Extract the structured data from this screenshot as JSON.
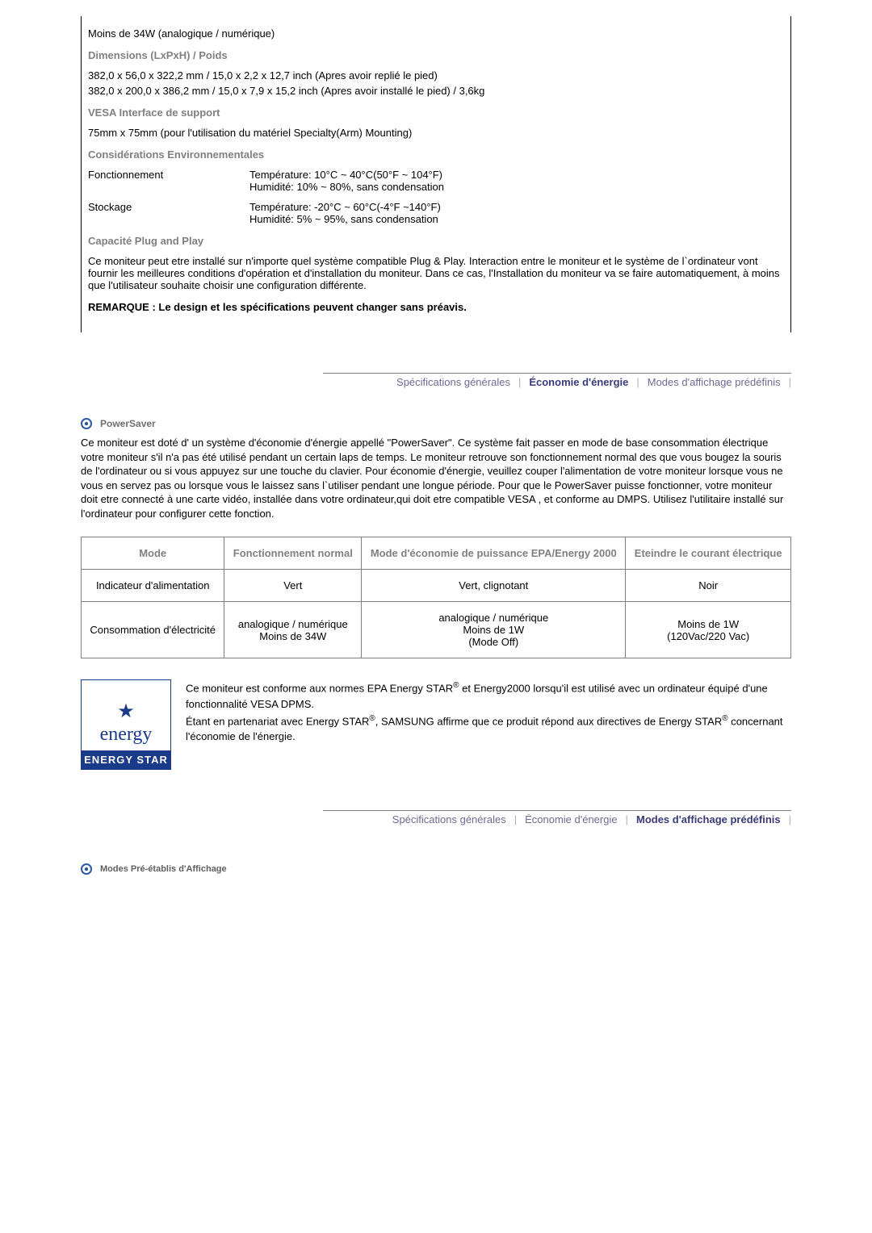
{
  "specs": {
    "power_consumption": "Moins de 34W (analogique / numérique)",
    "dimensions_heading": "Dimensions (LxPxH) / Poids",
    "dimensions_line1": "382,0 x 56,0 x 322,2 mm / 15,0 x 2,2 x 12,7 inch (Apres avoir replié le pied)",
    "dimensions_line2": "382,0 x 200,0 x 386,2 mm / 15,0 x 7,9 x 15,2 inch (Apres avoir installé le pied) / 3,6kg",
    "vesa_heading": "VESA Interface de support",
    "vesa_text": "75mm x 75mm (pour l'utilisation du matériel Specialty(Arm) Mounting)",
    "env_heading": "Considérations Environnementales",
    "operation_label": "Fonctionnement",
    "operation_temp": "Température: 10°C ~ 40°C(50°F ~ 104°F)",
    "operation_humidity": "Humidité: 10% ~ 80%, sans condensation",
    "storage_label": "Stockage",
    "storage_temp": "Température: -20°C ~ 60°C(-4°F ~140°F)",
    "storage_humidity": "Humidité: 5% ~ 95%, sans condensation",
    "pnp_heading": "Capacité Plug and Play",
    "pnp_text": "Ce moniteur peut etre installé sur n'importe quel système compatible Plug & Play. Interaction entre le moniteur et le système de l`ordinateur vont fournir les meilleures conditions d'opération et d'installation du moniteur. Dans ce cas, l'Installation du moniteur va se faire automatiquement, à moins que l'utilisateur souhaite choisir une configuration différente.",
    "remark": "REMARQUE : Le design et les spécifications peuvent changer sans préavis."
  },
  "tabs": {
    "general": "Spécifications générales",
    "energy": "Économie d'énergie",
    "preset": "Modes d'affichage prédéfinis"
  },
  "powersaver": {
    "title": "PowerSaver",
    "paragraph": "Ce moniteur est doté d' un système d'économie d'énergie appellé \"PowerSaver\". Ce système fait passer en mode de base consommation électrique votre moniteur s'il n'a pas été utilisé pendant un certain laps de temps. Le moniteur retrouve son fonctionnement normal des que vous bougez la souris de l'ordinateur ou si vous appuyez sur une touche du clavier. Pour économie d'énergie, veuillez couper l'alimentation de votre moniteur lorsque vous ne vous en servez pas ou lorsque vous le laissez sans l`utiliser pendant une longue période. Pour que le PowerSaver puisse fonctionner, votre moniteur doit etre connecté à une carte vidéo, installée dans votre ordinateur,qui doit etre compatible VESA , et conforme au DMPS. Utilisez l'utilitaire installé sur l'ordinateur pour configurer cette fonction."
  },
  "table": {
    "columns": [
      "Mode",
      "Fonctionnement normal",
      "Mode d'économie de puissance EPA/Energy 2000",
      "Eteindre le courant électrique"
    ],
    "rows": [
      [
        "Indicateur d'alimentation",
        "Vert",
        "Vert, clignotant",
        "Noir"
      ],
      [
        "Consommation d'électricité",
        "analogique / numérique\nMoins de 34W",
        "analogique / numérique\nMoins de 1W\n(Mode Off)",
        "Moins de 1W\n(120Vac/220 Vac)"
      ]
    ]
  },
  "cert": {
    "line1a": "Ce moniteur est conforme aux normes EPA Energy STAR",
    "line1b": " et Energy2000 lorsqu'il est utilisé avec un ordinateur équipé d'une fonctionnalité VESA DPMS.",
    "line2a": "Étant en partenariat avec Energy STAR",
    "line2b": ", SAMSUNG affirme que ce produit répond aux directives de Energy STAR",
    "line2c": " concernant l'économie de l'énergie.",
    "logo_script": "energy",
    "logo_bar": "ENERGY STAR"
  },
  "preset_heading": "Modes Pré-établis d'Affichage"
}
